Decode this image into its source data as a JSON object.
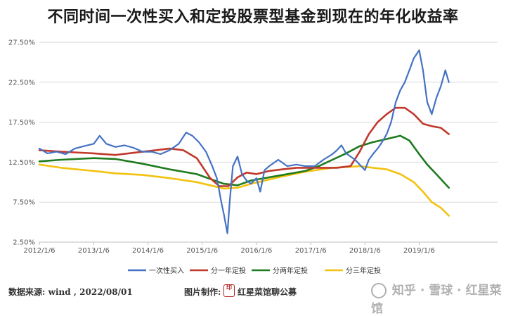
{
  "header": {
    "title": "不同时间一次性买入和定投股票型基金到现在的年化收益率"
  },
  "footer": {
    "source": "数据来源: wind , 2022/08/01",
    "credit_prefix": "图片制作:",
    "brand": "红星菜馆聊公募",
    "watermark": "知乎 · 雪球 · 红星菜馆"
  },
  "chart_data": {
    "type": "line",
    "title": "不同时间一次性买入和定投股票型基金到现在的年化收益率",
    "x_ticks": [
      "2012/1/6",
      "2013/1/6",
      "2014/1/6",
      "2015/1/6",
      "2016/1/6",
      "2017/1/6",
      "2018/1/6",
      "2019/1/6"
    ],
    "ylim": [
      2.5,
      27.5
    ],
    "y_ticks": [
      "2.50%",
      "7.50%",
      "12.50%",
      "17.50%",
      "22.50%",
      "27.50%"
    ],
    "grid": "horizontal",
    "legend_position": "bottom",
    "series": [
      {
        "name": "一次性买入",
        "color": "#4472c4",
        "points": [
          [
            "2012/1/6",
            14.2
          ],
          [
            "2012/3/1",
            13.6
          ],
          [
            "2012/5/1",
            13.8
          ],
          [
            "2012/7/1",
            13.5
          ],
          [
            "2012/9/1",
            14.2
          ],
          [
            "2012/11/1",
            14.5
          ],
          [
            "2013/1/6",
            14.8
          ],
          [
            "2013/2/15",
            15.8
          ],
          [
            "2013/4/1",
            14.8
          ],
          [
            "2013/6/1",
            14.4
          ],
          [
            "2013/8/1",
            14.6
          ],
          [
            "2013/10/1",
            14.3
          ],
          [
            "2013/12/1",
            13.8
          ],
          [
            "2014/2/1",
            13.8
          ],
          [
            "2014/4/1",
            13.5
          ],
          [
            "2014/6/1",
            14.0
          ],
          [
            "2014/8/1",
            14.8
          ],
          [
            "2014/9/20",
            16.2
          ],
          [
            "2014/11/1",
            15.8
          ],
          [
            "2014/12/15",
            15.0
          ],
          [
            "2015/2/1",
            13.8
          ],
          [
            "2015/3/15",
            12.0
          ],
          [
            "2015/4/15",
            10.5
          ],
          [
            "2015/5/15",
            7.5
          ],
          [
            "2015/6/1",
            6.0
          ],
          [
            "2015/6/25",
            3.6
          ],
          [
            "2015/7/10",
            7.5
          ],
          [
            "2015/8/1",
            12.0
          ],
          [
            "2015/9/1",
            13.2
          ],
          [
            "2015/10/1",
            11.0
          ],
          [
            "2015/11/1",
            10.2
          ],
          [
            "2015/12/1",
            9.8
          ],
          [
            "2016/1/6",
            10.5
          ],
          [
            "2016/2/1",
            8.8
          ],
          [
            "2016/3/1",
            11.5
          ],
          [
            "2016/4/1",
            12.0
          ],
          [
            "2016/6/1",
            12.8
          ],
          [
            "2016/8/1",
            12.0
          ],
          [
            "2016/10/1",
            12.2
          ],
          [
            "2016/12/1",
            12.0
          ],
          [
            "2017/2/1",
            12.0
          ],
          [
            "2017/4/1",
            12.8
          ],
          [
            "2017/6/1",
            13.5
          ],
          [
            "2017/7/1",
            14.0
          ],
          [
            "2017/8/1",
            14.6
          ],
          [
            "2017/9/1",
            13.6
          ],
          [
            "2017/10/1",
            13.2
          ],
          [
            "2017/11/1",
            12.8
          ],
          [
            "2017/12/1",
            12.2
          ],
          [
            "2018/1/6",
            11.5
          ],
          [
            "2018/2/1",
            12.8
          ],
          [
            "2018/3/1",
            13.5
          ],
          [
            "2018/4/1",
            14.2
          ],
          [
            "2018/5/1",
            15.0
          ],
          [
            "2018/6/1",
            16.0
          ],
          [
            "2018/7/1",
            17.5
          ],
          [
            "2018/8/1",
            20.0
          ],
          [
            "2018/9/1",
            21.5
          ],
          [
            "2018/10/1",
            22.5
          ],
          [
            "2018/11/1",
            24.0
          ],
          [
            "2018/12/1",
            25.5
          ],
          [
            "2019/1/6",
            26.5
          ],
          [
            "2019/2/1",
            24.0
          ],
          [
            "2019/3/1",
            20.0
          ],
          [
            "2019/4/1",
            18.5
          ],
          [
            "2019/5/1",
            20.5
          ],
          [
            "2019/6/1",
            22.0
          ],
          [
            "2019/7/1",
            24.0
          ],
          [
            "2019/7/25",
            22.5
          ]
        ]
      },
      {
        "name": "分一年定投",
        "color": "#c0392b",
        "points": [
          [
            "2012/1/6",
            14.0
          ],
          [
            "2012/6/1",
            13.8
          ],
          [
            "2013/1/6",
            13.6
          ],
          [
            "2013/6/1",
            13.4
          ],
          [
            "2013/12/1",
            13.8
          ],
          [
            "2014/3/1",
            14.0
          ],
          [
            "2014/6/1",
            14.2
          ],
          [
            "2014/9/1",
            14.0
          ],
          [
            "2014/12/1",
            13.0
          ],
          [
            "2015/3/1",
            10.5
          ],
          [
            "2015/5/1",
            9.5
          ],
          [
            "2015/7/1",
            9.5
          ],
          [
            "2015/9/1",
            10.6
          ],
          [
            "2015/11/1",
            11.2
          ],
          [
            "2016/1/6",
            11.0
          ],
          [
            "2016/4/1",
            11.4
          ],
          [
            "2016/7/1",
            11.6
          ],
          [
            "2016/10/1",
            11.8
          ],
          [
            "2017/1/6",
            11.8
          ],
          [
            "2017/4/1",
            11.8
          ],
          [
            "2017/7/1",
            11.8
          ],
          [
            "2017/10/1",
            12.0
          ],
          [
            "2017/12/1",
            13.8
          ],
          [
            "2018/2/1",
            16.0
          ],
          [
            "2018/4/1",
            17.5
          ],
          [
            "2018/6/1",
            18.5
          ],
          [
            "2018/8/1",
            19.3
          ],
          [
            "2018/10/1",
            19.3
          ],
          [
            "2018/12/1",
            18.5
          ],
          [
            "2019/2/1",
            17.3
          ],
          [
            "2019/4/1",
            17.0
          ],
          [
            "2019/6/1",
            16.8
          ],
          [
            "2019/7/25",
            16.0
          ]
        ]
      },
      {
        "name": "分两年定投",
        "color": "#1e7b1e",
        "points": [
          [
            "2012/1/6",
            12.6
          ],
          [
            "2012/6/1",
            12.8
          ],
          [
            "2013/1/6",
            13.0
          ],
          [
            "2013/6/1",
            12.9
          ],
          [
            "2013/12/1",
            12.3
          ],
          [
            "2014/6/1",
            11.6
          ],
          [
            "2014/12/1",
            11.0
          ],
          [
            "2015/3/1",
            10.4
          ],
          [
            "2015/6/1",
            9.8
          ],
          [
            "2015/9/1",
            9.6
          ],
          [
            "2015/12/1",
            10.2
          ],
          [
            "2016/6/1",
            10.8
          ],
          [
            "2016/12/1",
            11.4
          ],
          [
            "2017/3/1",
            12.0
          ],
          [
            "2017/6/1",
            12.8
          ],
          [
            "2017/9/1",
            13.6
          ],
          [
            "2017/12/1",
            14.5
          ],
          [
            "2018/3/1",
            15.0
          ],
          [
            "2018/6/1",
            15.4
          ],
          [
            "2018/9/1",
            15.8
          ],
          [
            "2018/11/1",
            15.2
          ],
          [
            "2019/1/6",
            13.5
          ],
          [
            "2019/3/1",
            12.2
          ],
          [
            "2019/5/1",
            11.0
          ],
          [
            "2019/7/25",
            9.3
          ]
        ]
      },
      {
        "name": "分三年定投",
        "color": "#f2c20f",
        "points": [
          [
            "2012/1/6",
            12.2
          ],
          [
            "2012/6/1",
            11.8
          ],
          [
            "2013/1/6",
            11.4
          ],
          [
            "2013/6/1",
            11.1
          ],
          [
            "2013/12/1",
            10.9
          ],
          [
            "2014/6/1",
            10.5
          ],
          [
            "2014/12/1",
            10.0
          ],
          [
            "2015/3/1",
            9.6
          ],
          [
            "2015/6/1",
            9.2
          ],
          [
            "2015/9/1",
            9.3
          ],
          [
            "2015/12/1",
            9.8
          ],
          [
            "2016/6/1",
            10.6
          ],
          [
            "2016/12/1",
            11.3
          ],
          [
            "2017/6/1",
            11.8
          ],
          [
            "2017/12/1",
            12.0
          ],
          [
            "2018/3/1",
            11.8
          ],
          [
            "2018/6/1",
            11.6
          ],
          [
            "2018/9/1",
            11.0
          ],
          [
            "2018/12/1",
            10.0
          ],
          [
            "2019/2/1",
            8.8
          ],
          [
            "2019/4/1",
            7.5
          ],
          [
            "2019/6/1",
            6.8
          ],
          [
            "2019/7/25",
            5.8
          ]
        ]
      }
    ]
  }
}
